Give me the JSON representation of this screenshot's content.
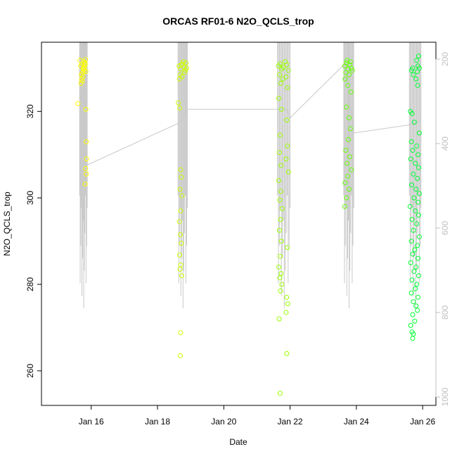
{
  "chart_data": {
    "type": "scatter",
    "title": "ORCAS RF01-6 N2O_QCLS_trop",
    "xlabel": "Date",
    "ylabel": "N2O_QCLS_trop",
    "x_ticks": [
      "Jan 16",
      "Jan 18",
      "Jan 20",
      "Jan 22",
      "Jan 24",
      "Jan 26"
    ],
    "x_tick_days": [
      16,
      18,
      20,
      22,
      24,
      26
    ],
    "xlim_days": [
      14.5,
      26.4
    ],
    "y_ticks": [
      260,
      280,
      300,
      320
    ],
    "ylim": [
      252,
      336
    ],
    "y2_ticks": [
      200,
      400,
      600,
      800,
      1000
    ],
    "y2lim": [
      1020,
      160
    ],
    "grid": false,
    "colors": {
      "pressure_trace": "#c8c8c8",
      "right_axis": "#c0c0c0",
      "flight_1": "#ffff00",
      "flight_2": "#ccff00",
      "flight_3": "#99ff00",
      "flight_4": "#66ff00",
      "flight_5": "#33ff00",
      "flight_6": "#00ff33"
    },
    "series": [
      {
        "color": "#ffff00",
        "day_start": 15.65,
        "day_end": 15.88,
        "pressure_top": 160,
        "pressure_bottom": 820,
        "points": [
          [
            15.68,
            330.5
          ],
          [
            15.72,
            331.0
          ],
          [
            15.76,
            329.8
          ],
          [
            15.8,
            330.2
          ],
          [
            15.7,
            328.5
          ],
          [
            15.74,
            329.0
          ],
          [
            15.78,
            331.5
          ],
          [
            15.82,
            330.8
          ],
          [
            15.71,
            327.5
          ],
          [
            15.75,
            328.0
          ],
          [
            15.79,
            329.5
          ],
          [
            15.83,
            332.0
          ],
          [
            15.69,
            326.5
          ],
          [
            15.77,
            330.0
          ],
          [
            15.81,
            331.2
          ],
          [
            15.73,
            327.0
          ],
          [
            15.66,
            331.8
          ],
          [
            15.84,
            329.2
          ],
          [
            15.6,
            321.8
          ],
          [
            15.84,
            320.5
          ],
          [
            15.85,
            313.0
          ],
          [
            15.86,
            309.0
          ],
          [
            15.83,
            306.8
          ],
          [
            15.85,
            305.5
          ],
          [
            15.82,
            303.2
          ]
        ]
      },
      {
        "color": "#ccff00",
        "day_start": 18.62,
        "day_end": 18.9,
        "pressure_top": 160,
        "pressure_bottom": 820,
        "points": [
          [
            18.65,
            330.5
          ],
          [
            18.7,
            329.8
          ],
          [
            18.75,
            331.0
          ],
          [
            18.8,
            330.2
          ],
          [
            18.85,
            329.5
          ],
          [
            18.68,
            328.5
          ],
          [
            18.72,
            330.8
          ],
          [
            18.78,
            331.5
          ],
          [
            18.82,
            329.0
          ],
          [
            18.88,
            330.0
          ],
          [
            18.66,
            327.5
          ],
          [
            18.74,
            328.0
          ],
          [
            18.86,
            331.2
          ],
          [
            18.63,
            322.0
          ],
          [
            18.67,
            320.8
          ],
          [
            18.7,
            306.5
          ],
          [
            18.72,
            304.8
          ],
          [
            18.68,
            302.0
          ],
          [
            18.74,
            300.5
          ],
          [
            18.7,
            297.0
          ],
          [
            18.66,
            294.5
          ],
          [
            18.69,
            291.5
          ],
          [
            18.72,
            289.5
          ],
          [
            18.67,
            286.8
          ],
          [
            18.7,
            284.5
          ],
          [
            18.68,
            283.5
          ],
          [
            18.73,
            282.0
          ],
          [
            18.7,
            268.8
          ],
          [
            18.69,
            263.5
          ]
        ]
      },
      {
        "color": "#99ff00",
        "day_start": 21.62,
        "day_end": 22.0,
        "pressure_top": 160,
        "pressure_bottom": 820,
        "points": [
          [
            21.65,
            330.5
          ],
          [
            21.7,
            331.0
          ],
          [
            21.75,
            329.8
          ],
          [
            21.8,
            330.2
          ],
          [
            21.85,
            331.5
          ],
          [
            21.9,
            330.8
          ],
          [
            21.95,
            329.5
          ],
          [
            21.68,
            328.5
          ],
          [
            21.78,
            327.5
          ],
          [
            21.88,
            328.0
          ],
          [
            21.72,
            326.5
          ],
          [
            21.92,
            325.5
          ],
          [
            21.66,
            323.0
          ],
          [
            21.74,
            320.5
          ],
          [
            21.9,
            318.0
          ],
          [
            21.7,
            314.5
          ],
          [
            21.92,
            312.0
          ],
          [
            21.68,
            310.5
          ],
          [
            21.88,
            309.0
          ],
          [
            21.73,
            307.5
          ],
          [
            21.95,
            306.0
          ],
          [
            21.66,
            304.0
          ],
          [
            21.72,
            301.5
          ],
          [
            21.69,
            299.5
          ],
          [
            21.76,
            297.5
          ],
          [
            21.71,
            295.0
          ],
          [
            21.68,
            292.5
          ],
          [
            21.74,
            290.0
          ],
          [
            21.92,
            288.5
          ],
          [
            21.7,
            286.5
          ],
          [
            21.66,
            284.0
          ],
          [
            21.73,
            282.5
          ],
          [
            21.69,
            281.5
          ],
          [
            21.75,
            280.0
          ],
          [
            21.71,
            278.5
          ],
          [
            21.9,
            277.0
          ],
          [
            21.93,
            275.5
          ],
          [
            21.88,
            273.5
          ],
          [
            21.67,
            272.0
          ],
          [
            21.9,
            264.0
          ],
          [
            21.7,
            254.8
          ]
        ]
      },
      {
        "color": "#66ff00",
        "day_start": 23.62,
        "day_end": 23.92,
        "pressure_top": 160,
        "pressure_bottom": 820,
        "points": [
          [
            23.65,
            330.5
          ],
          [
            23.7,
            331.2
          ],
          [
            23.75,
            329.8
          ],
          [
            23.8,
            330.8
          ],
          [
            23.85,
            330.0
          ],
          [
            23.68,
            329.0
          ],
          [
            23.72,
            331.8
          ],
          [
            23.78,
            328.5
          ],
          [
            23.82,
            331.5
          ],
          [
            23.88,
            329.5
          ],
          [
            23.66,
            327.5
          ],
          [
            23.74,
            326.0
          ],
          [
            23.84,
            324.5
          ],
          [
            23.7,
            321.0
          ],
          [
            23.78,
            318.5
          ],
          [
            23.82,
            316.0
          ],
          [
            23.76,
            313.5
          ],
          [
            23.68,
            311.0
          ],
          [
            23.8,
            309.5
          ],
          [
            23.72,
            308.0
          ],
          [
            23.85,
            306.5
          ],
          [
            23.74,
            305.0
          ],
          [
            23.66,
            303.5
          ],
          [
            23.78,
            302.0
          ],
          [
            23.7,
            300.0
          ],
          [
            23.65,
            298.0
          ]
        ]
      },
      {
        "color": "#00ff33",
        "day_start": 25.6,
        "day_end": 25.95,
        "pressure_top": 160,
        "pressure_bottom": 820,
        "points": [
          [
            25.82,
            331.8
          ],
          [
            25.86,
            330.5
          ],
          [
            25.9,
            330.0
          ],
          [
            25.84,
            329.2
          ],
          [
            25.88,
            332.8
          ],
          [
            25.7,
            330.0
          ],
          [
            25.66,
            329.5
          ],
          [
            25.72,
            328.5
          ],
          [
            25.8,
            327.5
          ],
          [
            25.85,
            326.0
          ],
          [
            25.63,
            320.0
          ],
          [
            25.68,
            319.5
          ],
          [
            25.75,
            317.5
          ],
          [
            25.9,
            315.0
          ],
          [
            25.66,
            313.0
          ],
          [
            25.82,
            312.0
          ],
          [
            25.7,
            311.0
          ],
          [
            25.86,
            310.0
          ],
          [
            25.64,
            309.0
          ],
          [
            25.78,
            308.0
          ],
          [
            25.88,
            307.0
          ],
          [
            25.72,
            305.5
          ],
          [
            25.84,
            304.5
          ],
          [
            25.67,
            303.0
          ],
          [
            25.8,
            302.0
          ],
          [
            25.9,
            301.0
          ],
          [
            25.74,
            300.0
          ],
          [
            25.86,
            299.0
          ],
          [
            25.62,
            298.0
          ],
          [
            25.78,
            297.0
          ],
          [
            25.88,
            296.0
          ],
          [
            25.68,
            295.0
          ],
          [
            25.82,
            294.0
          ],
          [
            25.72,
            292.5
          ],
          [
            25.9,
            291.0
          ],
          [
            25.66,
            290.0
          ],
          [
            25.84,
            289.0
          ],
          [
            25.76,
            288.0
          ],
          [
            25.7,
            287.0
          ],
          [
            25.86,
            286.0
          ],
          [
            25.64,
            285.0
          ],
          [
            25.8,
            284.0
          ],
          [
            25.74,
            283.0
          ],
          [
            25.88,
            282.0
          ],
          [
            25.68,
            281.0
          ],
          [
            25.82,
            280.0
          ],
          [
            25.78,
            279.0
          ],
          [
            25.66,
            278.0
          ],
          [
            25.86,
            277.0
          ],
          [
            25.72,
            276.0
          ],
          [
            25.8,
            275.0
          ],
          [
            25.84,
            274.0
          ],
          [
            25.7,
            273.0
          ],
          [
            25.76,
            271.5
          ],
          [
            25.64,
            270.5
          ],
          [
            25.68,
            269.0
          ],
          [
            25.72,
            268.5
          ],
          [
            25.7,
            267.5
          ]
        ]
      }
    ],
    "connector": [
      [
        15.85,
        307.5
      ],
      [
        18.7,
        317.5
      ],
      [
        18.9,
        320.5
      ],
      [
        21.9,
        320.5
      ],
      [
        22.0,
        318.5
      ],
      [
        23.65,
        331.0
      ],
      [
        23.92,
        315.0
      ],
      [
        25.7,
        317.0
      ],
      [
        25.95,
        318.0
      ]
    ]
  }
}
